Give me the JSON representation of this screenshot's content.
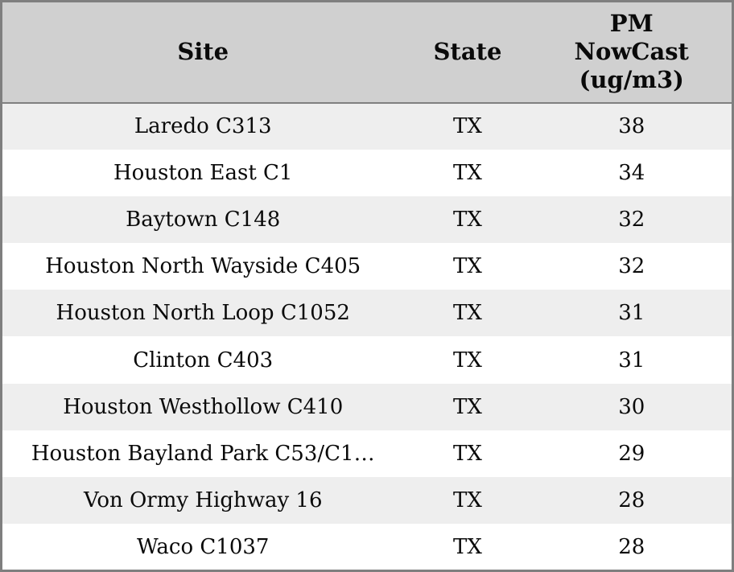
{
  "colors": {
    "header_bg": "#d0d0d0",
    "row_alt_bg": "#eeeeee",
    "row_bg": "#ffffff",
    "outer_border": "#7f7f7f",
    "header_separator": "#808080",
    "text": "#0a0a0a"
  },
  "chart_data": {
    "type": "table",
    "columns": [
      {
        "label": "Site"
      },
      {
        "label": "State"
      },
      {
        "label": "PM NowCast (ug/m3)",
        "lines": [
          "PM",
          "NowCast",
          "(ug/m3)"
        ]
      }
    ],
    "rows": [
      {
        "site": "Laredo C313",
        "state": "TX",
        "pm_nowcast": "38"
      },
      {
        "site": "Houston East C1",
        "state": "TX",
        "pm_nowcast": "34"
      },
      {
        "site": "Baytown C148",
        "state": "TX",
        "pm_nowcast": "32"
      },
      {
        "site": "Houston North Wayside C405",
        "state": "TX",
        "pm_nowcast": "32"
      },
      {
        "site": "Houston North Loop C1052",
        "state": "TX",
        "pm_nowcast": "31"
      },
      {
        "site": "Clinton C403",
        "state": "TX",
        "pm_nowcast": "31"
      },
      {
        "site": "Houston Westhollow C410",
        "state": "TX",
        "pm_nowcast": "30"
      },
      {
        "site": "Houston Bayland Park C53/C1…",
        "state": "TX",
        "pm_nowcast": "29"
      },
      {
        "site": "Von Ormy Highway 16",
        "state": "TX",
        "pm_nowcast": "28"
      },
      {
        "site": "Waco C1037",
        "state": "TX",
        "pm_nowcast": "28"
      }
    ]
  }
}
